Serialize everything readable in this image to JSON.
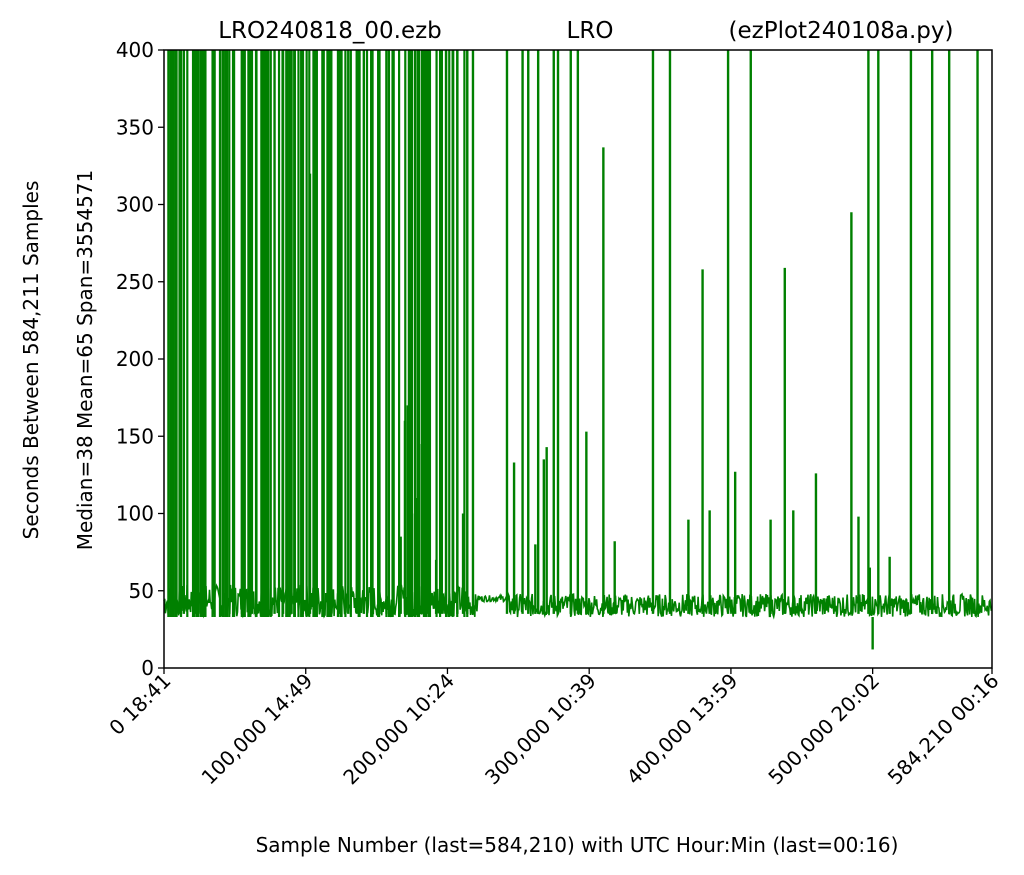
{
  "chart_data": {
    "type": "line",
    "title_left": "LRO240818_00.ezb",
    "title_center": "LRO",
    "title_right": "(ezPlot240108a.py)",
    "xlabel": "Sample Number (last=584,210) with UTC Hour:Min (last=00:16)",
    "ylabel_outer": "Seconds Between 584,211 Samples",
    "ylabel_inner": "Median=38  Mean=65  Span=3554571",
    "xlim": [
      0,
      584210
    ],
    "ylim": [
      0,
      400
    ],
    "y_ticks": [
      0,
      50,
      100,
      150,
      200,
      250,
      300,
      350,
      400
    ],
    "x_ticks": [
      {
        "value": 0,
        "label": "0  18:41"
      },
      {
        "value": 100000,
        "label": "100,000  14:49"
      },
      {
        "value": 200000,
        "label": "200,000  10:24"
      },
      {
        "value": 300000,
        "label": "300,000  10:39"
      },
      {
        "value": 400000,
        "label": "400,000  13:59"
      },
      {
        "value": 500000,
        "label": "500,000  20:02"
      },
      {
        "value": 584210,
        "label": "584,210  00:16"
      }
    ],
    "series": [
      {
        "color": "#008000",
        "baseline_low": 33,
        "baseline_high": 48,
        "dense_region": [
          0,
          215000
        ],
        "plateau_region": {
          "x": [
            221000,
            242000
          ],
          "y": 45
        },
        "spikes": [
          [
            103000,
            320
          ],
          [
            167000,
            85
          ],
          [
            170000,
            160
          ],
          [
            172000,
            170
          ],
          [
            175000,
            100
          ],
          [
            178000,
            110
          ],
          [
            180000,
            145
          ],
          [
            192000,
            70
          ],
          [
            211000,
            100
          ],
          [
            247000,
            133
          ],
          [
            262000,
            80
          ],
          [
            268000,
            135
          ],
          [
            270000,
            143
          ],
          [
            298000,
            153
          ],
          [
            310000,
            337
          ],
          [
            318000,
            82
          ],
          [
            370000,
            96
          ],
          [
            380000,
            258
          ],
          [
            385000,
            102
          ],
          [
            403000,
            127
          ],
          [
            428000,
            96
          ],
          [
            438000,
            259
          ],
          [
            444000,
            102
          ],
          [
            460000,
            126
          ],
          [
            485000,
            295
          ],
          [
            490000,
            98
          ],
          [
            498000,
            65
          ],
          [
            500000,
            12
          ],
          [
            512000,
            72
          ],
          [
            545000,
            40
          ]
        ],
        "full_height_spikes": [
          [
            11000,
            400
          ],
          [
            14000,
            400
          ],
          [
            22000,
            400
          ],
          [
            26000,
            400
          ],
          [
            35000,
            400
          ],
          [
            44000,
            400
          ],
          [
            49000,
            400
          ],
          [
            55000,
            400
          ],
          [
            62000,
            400
          ],
          [
            65000,
            400
          ],
          [
            73000,
            400
          ],
          [
            78000,
            400
          ],
          [
            84000,
            400
          ],
          [
            90000,
            400
          ],
          [
            98000,
            400
          ],
          [
            107000,
            400
          ],
          [
            112000,
            400
          ],
          [
            118000,
            400
          ],
          [
            124000,
            400
          ],
          [
            130000,
            400
          ],
          [
            136000,
            400
          ],
          [
            141000,
            400
          ],
          [
            147000,
            400
          ],
          [
            152000,
            400
          ],
          [
            157000,
            400
          ],
          [
            162000,
            400
          ],
          [
            182000,
            400
          ],
          [
            186000,
            400
          ],
          [
            196000,
            400
          ],
          [
            199000,
            400
          ],
          [
            204000,
            400
          ],
          [
            207000,
            400
          ],
          [
            214000,
            400
          ],
          [
            218000,
            400
          ],
          [
            242000,
            400
          ],
          [
            253000,
            400
          ],
          [
            257000,
            400
          ],
          [
            264000,
            400
          ],
          [
            275000,
            400
          ],
          [
            278000,
            400
          ],
          [
            287000,
            400
          ],
          [
            292000,
            400
          ],
          [
            345000,
            400
          ],
          [
            357000,
            400
          ],
          [
            398000,
            400
          ],
          [
            414000,
            400
          ],
          [
            497000,
            400
          ],
          [
            504000,
            400
          ],
          [
            527000,
            400
          ],
          [
            542000,
            400
          ],
          [
            554000,
            400
          ],
          [
            574000,
            400
          ]
        ]
      }
    ]
  }
}
